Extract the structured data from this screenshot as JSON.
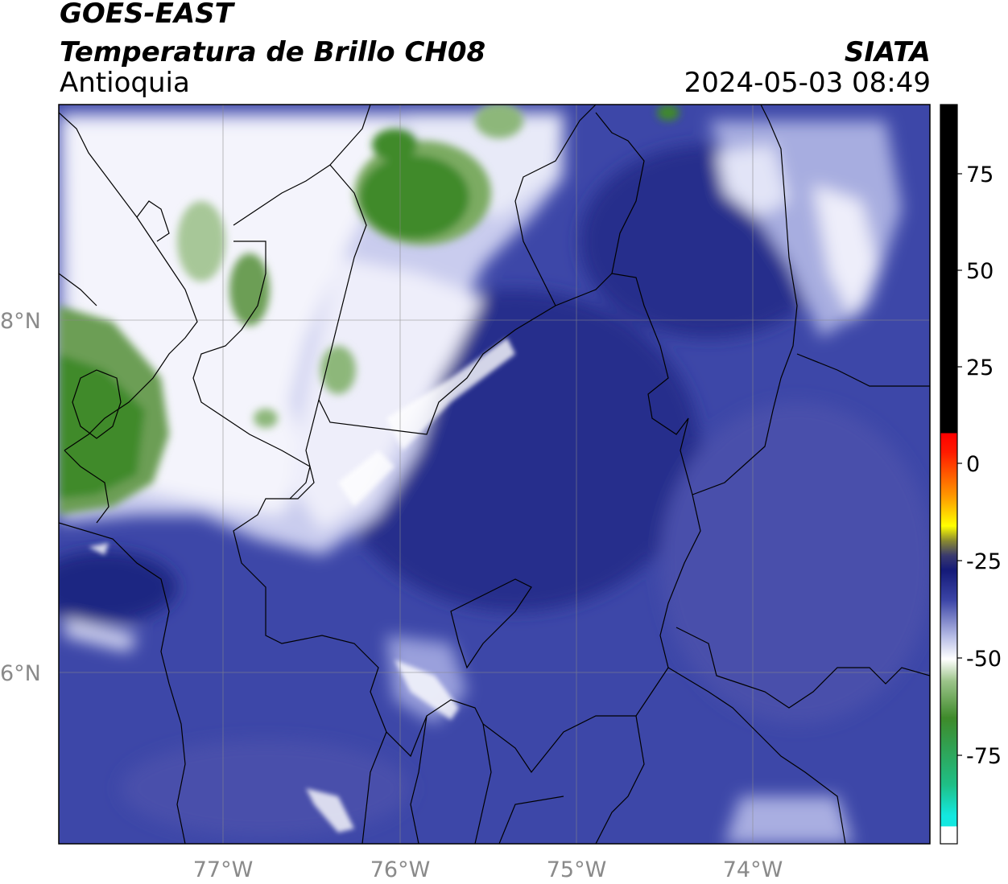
{
  "header": {
    "title_line1": "GOES-EAST",
    "title_line2": "Temperatura de Brillo CH08",
    "organization": "SIATA",
    "region": "Antioquia",
    "datetime": "2024-05-03 08:49"
  },
  "map": {
    "lon_labels": [
      "77°W",
      "76°W",
      "75°W",
      "74°W"
    ],
    "lat_labels": [
      "8°N",
      "6°N"
    ]
  },
  "colorbar": {
    "tick_labels": [
      "75",
      "50",
      "25",
      "0",
      "-25",
      "-50",
      "-75"
    ],
    "colors": {
      "black": "#000000",
      "red": "#ff1a00",
      "orange": "#ff9900",
      "yellow": "#ffff00",
      "dark_navy": "#141a78",
      "blue": "#3b44a6",
      "light_blue": "#b7bde6",
      "white": "#ffffff",
      "green": "#3e8a2a",
      "teal": "#1fbf86",
      "cyan": "#13e8e0"
    }
  },
  "colors": {
    "ocean_cloud_blue": "#3d47a8",
    "deep_blue": "#1d237f",
    "cloud_white": "#ffffff",
    "cold_top_green": "#3f8a2b"
  }
}
